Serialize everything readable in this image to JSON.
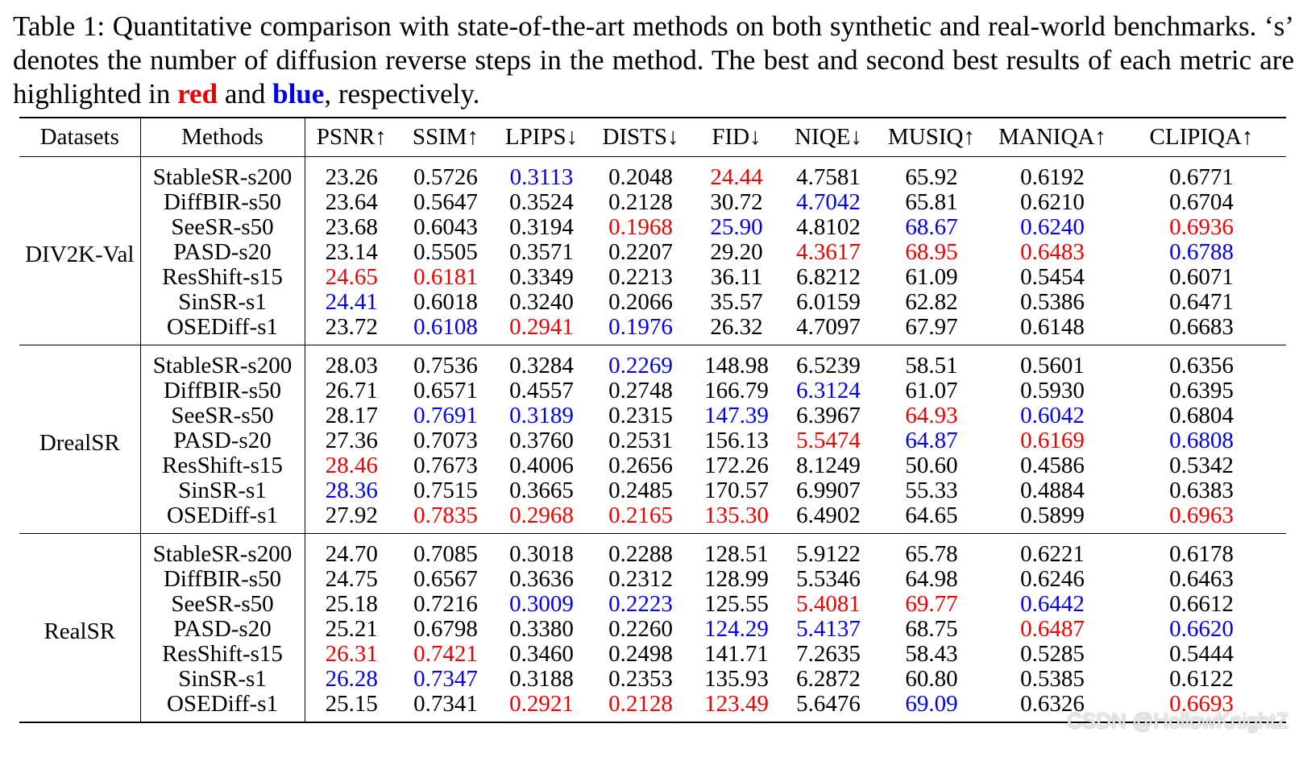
{
  "caption": {
    "prefix": "Table 1: Quantitative comparison with state-of-the-art methods on both synthetic and real-world benchmarks. ‘s’ denotes the number of diffusion reverse steps in the method. The best and second best results of each metric are highlighted in",
    "red_word": "red",
    "and_word": "and",
    "blue_word": "blue",
    "suffix": ", respectively."
  },
  "colors": {
    "best": "#f00000",
    "second": "#0000f0"
  },
  "headers": [
    "Datasets",
    "Methods",
    "PSNR↑",
    "SSIM↑",
    "LPIPS↓",
    "DISTS↓",
    "FID↓",
    "NIQE↓",
    "MUSIQ↑",
    "MANIQA↑",
    "CLIPIQA↑"
  ],
  "groups": [
    {
      "dataset": "DIV2K-Val",
      "rows": [
        {
          "method": "StableSR-s200",
          "values": [
            "23.26",
            "0.5726",
            "0.3113",
            "0.2048",
            "24.44",
            "4.7581",
            "65.92",
            "0.6192",
            "0.6771"
          ],
          "marks": [
            "",
            "",
            "second",
            "",
            "best",
            "",
            "",
            "",
            ""
          ]
        },
        {
          "method": "DiffBIR-s50",
          "values": [
            "23.64",
            "0.5647",
            "0.3524",
            "0.2128",
            "30.72",
            "4.7042",
            "65.81",
            "0.6210",
            "0.6704"
          ],
          "marks": [
            "",
            "",
            "",
            "",
            "",
            "second",
            "",
            "",
            ""
          ]
        },
        {
          "method": "SeeSR-s50",
          "values": [
            "23.68",
            "0.6043",
            "0.3194",
            "0.1968",
            "25.90",
            "4.8102",
            "68.67",
            "0.6240",
            "0.6936"
          ],
          "marks": [
            "",
            "",
            "",
            "best",
            "second",
            "",
            "second",
            "second",
            "best"
          ]
        },
        {
          "method": "PASD-s20",
          "values": [
            "23.14",
            "0.5505",
            "0.3571",
            "0.2207",
            "29.20",
            "4.3617",
            "68.95",
            "0.6483",
            "0.6788"
          ],
          "marks": [
            "",
            "",
            "",
            "",
            "",
            "best",
            "best",
            "best",
            "second"
          ]
        },
        {
          "method": "ResShift-s15",
          "values": [
            "24.65",
            "0.6181",
            "0.3349",
            "0.2213",
            "36.11",
            "6.8212",
            "61.09",
            "0.5454",
            "0.6071"
          ],
          "marks": [
            "best",
            "best",
            "",
            "",
            "",
            "",
            "",
            "",
            ""
          ]
        },
        {
          "method": "SinSR-s1",
          "values": [
            "24.41",
            "0.6018",
            "0.3240",
            "0.2066",
            "35.57",
            "6.0159",
            "62.82",
            "0.5386",
            "0.6471"
          ],
          "marks": [
            "second",
            "",
            "",
            "",
            "",
            "",
            "",
            "",
            ""
          ]
        },
        {
          "method": "OSEDiff-s1",
          "values": [
            "23.72",
            "0.6108",
            "0.2941",
            "0.1976",
            "26.32",
            "4.7097",
            "67.97",
            "0.6148",
            "0.6683"
          ],
          "marks": [
            "",
            "second",
            "best",
            "second",
            "",
            "",
            "",
            "",
            ""
          ]
        }
      ]
    },
    {
      "dataset": "DrealSR",
      "rows": [
        {
          "method": "StableSR-s200",
          "values": [
            "28.03",
            "0.7536",
            "0.3284",
            "0.2269",
            "148.98",
            "6.5239",
            "58.51",
            "0.5601",
            "0.6356"
          ],
          "marks": [
            "",
            "",
            "",
            "second",
            "",
            "",
            "",
            "",
            ""
          ]
        },
        {
          "method": "DiffBIR-s50",
          "values": [
            "26.71",
            "0.6571",
            "0.4557",
            "0.2748",
            "166.79",
            "6.3124",
            "61.07",
            "0.5930",
            "0.6395"
          ],
          "marks": [
            "",
            "",
            "",
            "",
            "",
            "second",
            "",
            "",
            ""
          ]
        },
        {
          "method": "SeeSR-s50",
          "values": [
            "28.17",
            "0.7691",
            "0.3189",
            "0.2315",
            "147.39",
            "6.3967",
            "64.93",
            "0.6042",
            "0.6804"
          ],
          "marks": [
            "",
            "second",
            "second",
            "",
            "second",
            "",
            "best",
            "second",
            ""
          ]
        },
        {
          "method": "PASD-s20",
          "values": [
            "27.36",
            "0.7073",
            "0.3760",
            "0.2531",
            "156.13",
            "5.5474",
            "64.87",
            "0.6169",
            "0.6808"
          ],
          "marks": [
            "",
            "",
            "",
            "",
            "",
            "best",
            "second",
            "best",
            "second"
          ]
        },
        {
          "method": "ResShift-s15",
          "values": [
            "28.46",
            "0.7673",
            "0.4006",
            "0.2656",
            "172.26",
            "8.1249",
            "50.60",
            "0.4586",
            "0.5342"
          ],
          "marks": [
            "best",
            "",
            "",
            "",
            "",
            "",
            "",
            "",
            ""
          ]
        },
        {
          "method": "SinSR-s1",
          "values": [
            "28.36",
            "0.7515",
            "0.3665",
            "0.2485",
            "170.57",
            "6.9907",
            "55.33",
            "0.4884",
            "0.6383"
          ],
          "marks": [
            "second",
            "",
            "",
            "",
            "",
            "",
            "",
            "",
            ""
          ]
        },
        {
          "method": "OSEDiff-s1",
          "values": [
            "27.92",
            "0.7835",
            "0.2968",
            "0.2165",
            "135.30",
            "6.4902",
            "64.65",
            "0.5899",
            "0.6963"
          ],
          "marks": [
            "",
            "best",
            "best",
            "best",
            "best",
            "",
            "",
            "",
            "best"
          ]
        }
      ]
    },
    {
      "dataset": "RealSR",
      "rows": [
        {
          "method": "StableSR-s200",
          "values": [
            "24.70",
            "0.7085",
            "0.3018",
            "0.2288",
            "128.51",
            "5.9122",
            "65.78",
            "0.6221",
            "0.6178"
          ],
          "marks": [
            "",
            "",
            "",
            "",
            "",
            "",
            "",
            "",
            ""
          ]
        },
        {
          "method": "DiffBIR-s50",
          "values": [
            "24.75",
            "0.6567",
            "0.3636",
            "0.2312",
            "128.99",
            "5.5346",
            "64.98",
            "0.6246",
            "0.6463"
          ],
          "marks": [
            "",
            "",
            "",
            "",
            "",
            "",
            "",
            "",
            ""
          ]
        },
        {
          "method": "SeeSR-s50",
          "values": [
            "25.18",
            "0.7216",
            "0.3009",
            "0.2223",
            "125.55",
            "5.4081",
            "69.77",
            "0.6442",
            "0.6612"
          ],
          "marks": [
            "",
            "",
            "second",
            "second",
            "",
            "best",
            "best",
            "second",
            ""
          ]
        },
        {
          "method": "PASD-s20",
          "values": [
            "25.21",
            "0.6798",
            "0.3380",
            "0.2260",
            "124.29",
            "5.4137",
            "68.75",
            "0.6487",
            "0.6620"
          ],
          "marks": [
            "",
            "",
            "",
            "",
            "second",
            "second",
            "",
            "best",
            "second"
          ]
        },
        {
          "method": "ResShift-s15",
          "values": [
            "26.31",
            "0.7421",
            "0.3460",
            "0.2498",
            "141.71",
            "7.2635",
            "58.43",
            "0.5285",
            "0.5444"
          ],
          "marks": [
            "best",
            "best",
            "",
            "",
            "",
            "",
            "",
            "",
            ""
          ]
        },
        {
          "method": "SinSR-s1",
          "values": [
            "26.28",
            "0.7347",
            "0.3188",
            "0.2353",
            "135.93",
            "6.2872",
            "60.80",
            "0.5385",
            "0.6122"
          ],
          "marks": [
            "second",
            "second",
            "",
            "",
            "",
            "",
            "",
            "",
            ""
          ]
        },
        {
          "method": "OSEDiff-s1",
          "values": [
            "25.15",
            "0.7341",
            "0.2921",
            "0.2128",
            "123.49",
            "5.6476",
            "69.09",
            "0.6326",
            "0.6693"
          ],
          "marks": [
            "",
            "",
            "best",
            "best",
            "best",
            "",
            "second",
            "",
            "best"
          ]
        }
      ]
    }
  ],
  "watermark": "CSDN @HollowKnightZ"
}
